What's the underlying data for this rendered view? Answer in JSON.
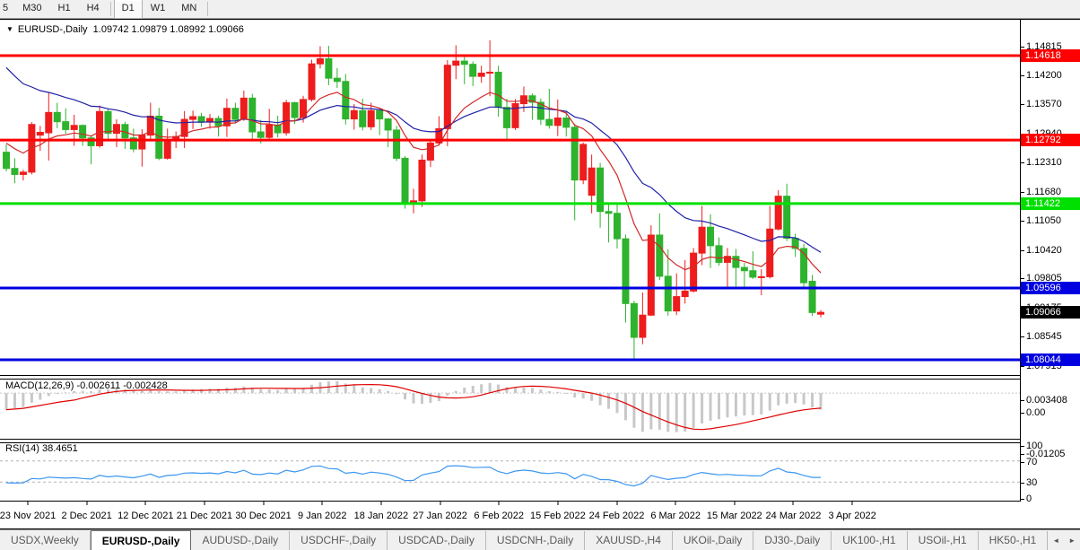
{
  "toolbar": {
    "timeframes": [
      "5",
      "M30",
      "H1",
      "H4",
      "D1",
      "W1",
      "MN"
    ],
    "active": "D1"
  },
  "chart": {
    "title_symbol": "EURUSD-,Daily",
    "title_ohlc": "1.09742 1.09879 1.08992 1.09066",
    "colors": {
      "up_candle": "#ee1c1c",
      "down_candle": "#2db32d",
      "ma_fast": "#d22828",
      "ma_slow": "#2020a8",
      "hline_red": "#ff0000",
      "hline_green": "#00e000",
      "hline_blue": "#0000e0",
      "macd_hist": "#c8c8c8",
      "macd_signal": "#e00000",
      "rsi_line": "#3c96f0",
      "current_label_bg": "#000000"
    },
    "y_ticks": [
      "1.14815",
      "1.14200",
      "1.13570",
      "1.12940",
      "1.12310",
      "1.11680",
      "1.11050",
      "1.10420",
      "1.09805",
      "1.09175",
      "1.08545",
      "1.07915"
    ],
    "hlines": [
      {
        "price": 1.14618,
        "label": "1.14618",
        "color": "#ff0000"
      },
      {
        "price": 1.12792,
        "label": "1.12792",
        "color": "#ff0000"
      },
      {
        "price": 1.11422,
        "label": "1.11422",
        "color": "#00e000"
      },
      {
        "price": 1.09596,
        "label": "1.09596",
        "color": "#0000e0"
      },
      {
        "price": 1.08044,
        "label": "1.08044",
        "color": "#0000e0"
      }
    ],
    "current_price": {
      "value": 1.09066,
      "label": "1.09066"
    },
    "candles": [
      [
        1.1253,
        1.127,
        1.1212,
        1.1218
      ],
      [
        1.1218,
        1.124,
        1.1186,
        1.1205
      ],
      [
        1.1205,
        1.1215,
        1.1192,
        1.121
      ],
      [
        1.121,
        1.1318,
        1.1205,
        1.1313
      ],
      [
        1.129,
        1.131,
        1.1256,
        1.1296
      ],
      [
        1.1295,
        1.1383,
        1.1235,
        1.1339
      ],
      [
        1.1339,
        1.136,
        1.1305,
        1.1319
      ],
      [
        1.1319,
        1.1348,
        1.1293,
        1.1302
      ],
      [
        1.1302,
        1.1334,
        1.1267,
        1.1311
      ],
      [
        1.1311,
        1.1313,
        1.1267,
        1.1284
      ],
      [
        1.1284,
        1.129,
        1.1227,
        1.1267
      ],
      [
        1.1267,
        1.1354,
        1.1263,
        1.1341
      ],
      [
        1.1341,
        1.1348,
        1.128,
        1.1294
      ],
      [
        1.1294,
        1.1324,
        1.1264,
        1.1313
      ],
      [
        1.1313,
        1.1319,
        1.126,
        1.1284
      ],
      [
        1.1284,
        1.1304,
        1.1253,
        1.126
      ],
      [
        1.126,
        1.1303,
        1.1222,
        1.129
      ],
      [
        1.129,
        1.136,
        1.128,
        1.1331
      ],
      [
        1.1331,
        1.1349,
        1.1236,
        1.124
      ],
      [
        1.124,
        1.1304,
        1.1237,
        1.1278
      ],
      [
        1.1278,
        1.1298,
        1.1262,
        1.1287
      ],
      [
        1.1287,
        1.1342,
        1.1262,
        1.1324
      ],
      [
        1.1324,
        1.1343,
        1.1303,
        1.133
      ],
      [
        1.133,
        1.1338,
        1.1308,
        1.1318
      ],
      [
        1.1318,
        1.1336,
        1.1304,
        1.1326
      ],
      [
        1.1326,
        1.1332,
        1.1287,
        1.131
      ],
      [
        1.131,
        1.1369,
        1.1286,
        1.1348
      ],
      [
        1.1348,
        1.136,
        1.1315,
        1.1324
      ],
      [
        1.1324,
        1.1386,
        1.1321,
        1.137
      ],
      [
        1.137,
        1.1379,
        1.1279,
        1.1297
      ],
      [
        1.1297,
        1.1323,
        1.1272,
        1.1285
      ],
      [
        1.1285,
        1.1347,
        1.1281,
        1.1312
      ],
      [
        1.1312,
        1.1332,
        1.1285,
        1.1295
      ],
      [
        1.1295,
        1.1366,
        1.1289,
        1.136
      ],
      [
        1.136,
        1.1362,
        1.1314,
        1.1328
      ],
      [
        1.1328,
        1.1375,
        1.1317,
        1.1367
      ],
      [
        1.1367,
        1.1453,
        1.1363,
        1.1444
      ],
      [
        1.1444,
        1.1482,
        1.1434,
        1.1455
      ],
      [
        1.1455,
        1.1483,
        1.1398,
        1.1413
      ],
      [
        1.1413,
        1.1435,
        1.1392,
        1.1406
      ],
      [
        1.1406,
        1.1422,
        1.1313,
        1.1325
      ],
      [
        1.1325,
        1.1357,
        1.1302,
        1.1343
      ],
      [
        1.1343,
        1.1369,
        1.13,
        1.1308
      ],
      [
        1.1308,
        1.136,
        1.1301,
        1.1343
      ],
      [
        1.1343,
        1.1344,
        1.129,
        1.1325
      ],
      [
        1.1325,
        1.1327,
        1.1264,
        1.1301
      ],
      [
        1.1301,
        1.131,
        1.1234,
        1.124
      ],
      [
        1.124,
        1.1245,
        1.1131,
        1.1144
      ],
      [
        1.1144,
        1.1174,
        1.1121,
        1.1148
      ],
      [
        1.1148,
        1.1248,
        1.1135,
        1.1236
      ],
      [
        1.1236,
        1.128,
        1.1221,
        1.1273
      ],
      [
        1.1273,
        1.1331,
        1.1267,
        1.1304
      ],
      [
        1.1304,
        1.1452,
        1.1266,
        1.1441
      ],
      [
        1.1441,
        1.1484,
        1.1411,
        1.145
      ],
      [
        1.145,
        1.1459,
        1.14,
        1.1443
      ],
      [
        1.1443,
        1.1449,
        1.1396,
        1.1417
      ],
      [
        1.1417,
        1.144,
        1.1403,
        1.1424
      ],
      [
        1.1424,
        1.1495,
        1.1374,
        1.1426
      ],
      [
        1.1426,
        1.144,
        1.133,
        1.135
      ],
      [
        1.135,
        1.1369,
        1.1278,
        1.1306
      ],
      [
        1.1306,
        1.1368,
        1.1301,
        1.1358
      ],
      [
        1.1358,
        1.1395,
        1.134,
        1.1375
      ],
      [
        1.1375,
        1.138,
        1.1323,
        1.1361
      ],
      [
        1.1361,
        1.1369,
        1.1312,
        1.1324
      ],
      [
        1.1324,
        1.139,
        1.1304,
        1.1311
      ],
      [
        1.1311,
        1.1367,
        1.1288,
        1.1327
      ],
      [
        1.1327,
        1.1342,
        1.1287,
        1.1307
      ],
      [
        1.1307,
        1.1315,
        1.1106,
        1.1193
      ],
      [
        1.1193,
        1.1274,
        1.1184,
        1.127
      ],
      [
        1.116,
        1.1248,
        1.1121,
        1.1219
      ],
      [
        1.1219,
        1.123,
        1.109,
        1.1125
      ],
      [
        1.1125,
        1.1144,
        1.1058,
        1.1121
      ],
      [
        1.1121,
        1.1142,
        1.1045,
        1.1066
      ],
      [
        1.1066,
        1.1075,
        1.0885,
        1.0926
      ],
      [
        1.0926,
        1.0932,
        1.0806,
        1.0853
      ],
      [
        1.0853,
        1.095,
        1.0838,
        1.0901
      ],
      [
        1.0901,
        1.1095,
        1.0899,
        1.1074
      ],
      [
        1.1074,
        1.1121,
        1.0977,
        1.0985
      ],
      [
        1.0985,
        1.1043,
        1.09,
        1.091
      ],
      [
        1.091,
        1.0991,
        1.0901,
        1.0941
      ],
      [
        1.0941,
        1.102,
        1.0926,
        1.0953
      ],
      [
        1.0953,
        1.1046,
        1.095,
        1.1035
      ],
      [
        1.1035,
        1.1137,
        1.1009,
        1.1091
      ],
      [
        1.1091,
        1.1119,
        1.1003,
        1.1051
      ],
      [
        1.1051,
        1.1069,
        1.1008,
        1.1015
      ],
      [
        1.1015,
        1.1046,
        1.0962,
        1.1028
      ],
      [
        1.1028,
        1.1044,
        1.0963,
        1.1004
      ],
      [
        1.1004,
        1.1014,
        1.096,
        1.0997
      ],
      [
        1.0997,
        1.1039,
        1.0979,
        1.0983
      ],
      [
        1.0983,
        1.1,
        1.0944,
        1.0984
      ],
      [
        1.0984,
        1.1137,
        1.098,
        1.1087
      ],
      [
        1.1087,
        1.1171,
        1.1084,
        1.1158
      ],
      [
        1.1158,
        1.1185,
        1.1061,
        1.1067
      ],
      [
        1.1067,
        1.1077,
        1.1027,
        1.1045
      ],
      [
        1.1045,
        1.1055,
        1.096,
        1.0971
      ],
      [
        1.09742,
        1.09879,
        1.08992,
        1.09066
      ],
      [
        1.0903,
        1.0912,
        1.0896,
        1.0907
      ]
    ]
  },
  "macd": {
    "label": "MACD(12,26,9) -0.002611 -0.002428",
    "ticks": [
      "0.003408",
      "0.00",
      "-0.01205"
    ],
    "max": 0.003408,
    "min": -0.01205
  },
  "rsi": {
    "label": "RSI(14) 38.4651",
    "ticks": [
      "100",
      "70",
      "30",
      "0"
    ],
    "levels": [
      70,
      30
    ]
  },
  "x_axis": {
    "dates": [
      "23 Nov 2021",
      "2 Dec 2021",
      "12 Dec 2021",
      "21 Dec 2021",
      "30 Dec 2021",
      "9 Jan 2022",
      "18 Jan 2022",
      "27 Jan 2022",
      "6 Feb 2022",
      "15 Feb 2022",
      "24 Feb 2022",
      "6 Mar 2022",
      "15 Mar 2022",
      "24 Mar 2022",
      "3 Apr 2022"
    ]
  },
  "tabs": {
    "items": [
      "USDX,Weekly",
      "EURUSD-,Daily",
      "AUDUSD-,Daily",
      "USDCHF-,Daily",
      "USDCAD-,Daily",
      "USDCNH-,Daily",
      "XAUUSD-,H4",
      "UKOil-,Daily",
      "DJ30-,Daily",
      "UK100-,H1",
      "USOil-,H1",
      "HK50-,H1"
    ],
    "active": "EURUSD-,Daily",
    "scroll_left": "◄",
    "scroll_right": "►"
  }
}
